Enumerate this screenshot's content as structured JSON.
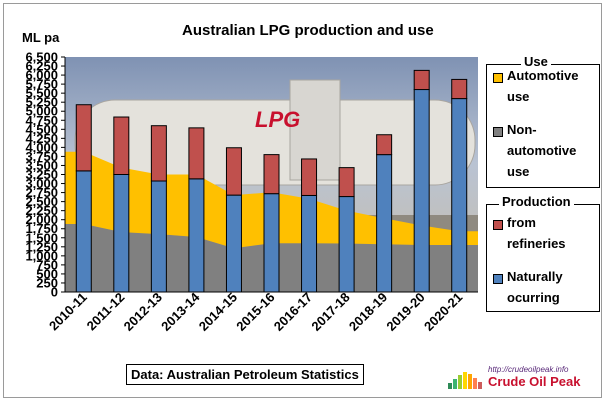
{
  "chart_data": {
    "type": "bar",
    "title": "Australian LPG production and use",
    "ylabel": "ML pa",
    "ylim": [
      0,
      6500
    ],
    "yticks": [
      0,
      250,
      500,
      750,
      1000,
      1250,
      1500,
      1750,
      2000,
      2250,
      2500,
      2750,
      3000,
      3250,
      3500,
      3750,
      4000,
      4250,
      4500,
      4750,
      5000,
      5250,
      5500,
      5750,
      6000,
      6250,
      6500
    ],
    "ytick_labels": [
      "0",
      "250",
      "500",
      "750",
      "1,000",
      "1,250",
      "1,500",
      "1,750",
      "2,000",
      "2,250",
      "2,500",
      "2,750",
      "3,000",
      "3,250",
      "3,500",
      "3,750",
      "4,000",
      "4,250",
      "4,500",
      "4,750",
      "5,000",
      "5,250",
      "5,500",
      "5,750",
      "6,000",
      "6,250",
      "6,500"
    ],
    "categories": [
      "2010-11",
      "2011-12",
      "2012-13",
      "2013-14",
      "2014-15",
      "2015-16",
      "2016-17",
      "2017-18",
      "2018-19",
      "2019-20",
      "2020-21"
    ],
    "use_series": [
      {
        "name": "Non-automotive use",
        "values": [
          1880,
          1660,
          1600,
          1520,
          1210,
          1350,
          1350,
          1340,
          1320,
          1300,
          1300
        ],
        "color": "#808080"
      },
      {
        "name": "Automotive use",
        "values": [
          2000,
          1780,
          1650,
          1730,
          1470,
          1410,
          1230,
          910,
          720,
          540,
          380
        ],
        "color": "#FFC000"
      }
    ],
    "production_series": [
      {
        "name": "Naturally ocurring",
        "values": [
          3350,
          3250,
          3070,
          3130,
          2680,
          2720,
          2670,
          2640,
          3800,
          5600,
          5350
        ],
        "color": "#4F81BD"
      },
      {
        "name": "from refineries",
        "values": [
          1830,
          1590,
          1530,
          1410,
          1310,
          1080,
          1010,
          800,
          550,
          530,
          530
        ],
        "color": "#C0504D"
      }
    ],
    "legend": {
      "placement": "right",
      "use_title": "Use",
      "production_title": "Production",
      "automotive_label": "Automotive use",
      "nonautomotive_label": "Non-automotive use",
      "refineries_label": "from refineries",
      "natural_label": "Naturally ocurring"
    },
    "grid": false,
    "background_image": "LPG tanker truck photo"
  },
  "source_note": "Data: Australian Petroleum Statistics",
  "brand": {
    "url": "http://crudeoilpeak.info",
    "name": "Crude Oil Peak"
  }
}
